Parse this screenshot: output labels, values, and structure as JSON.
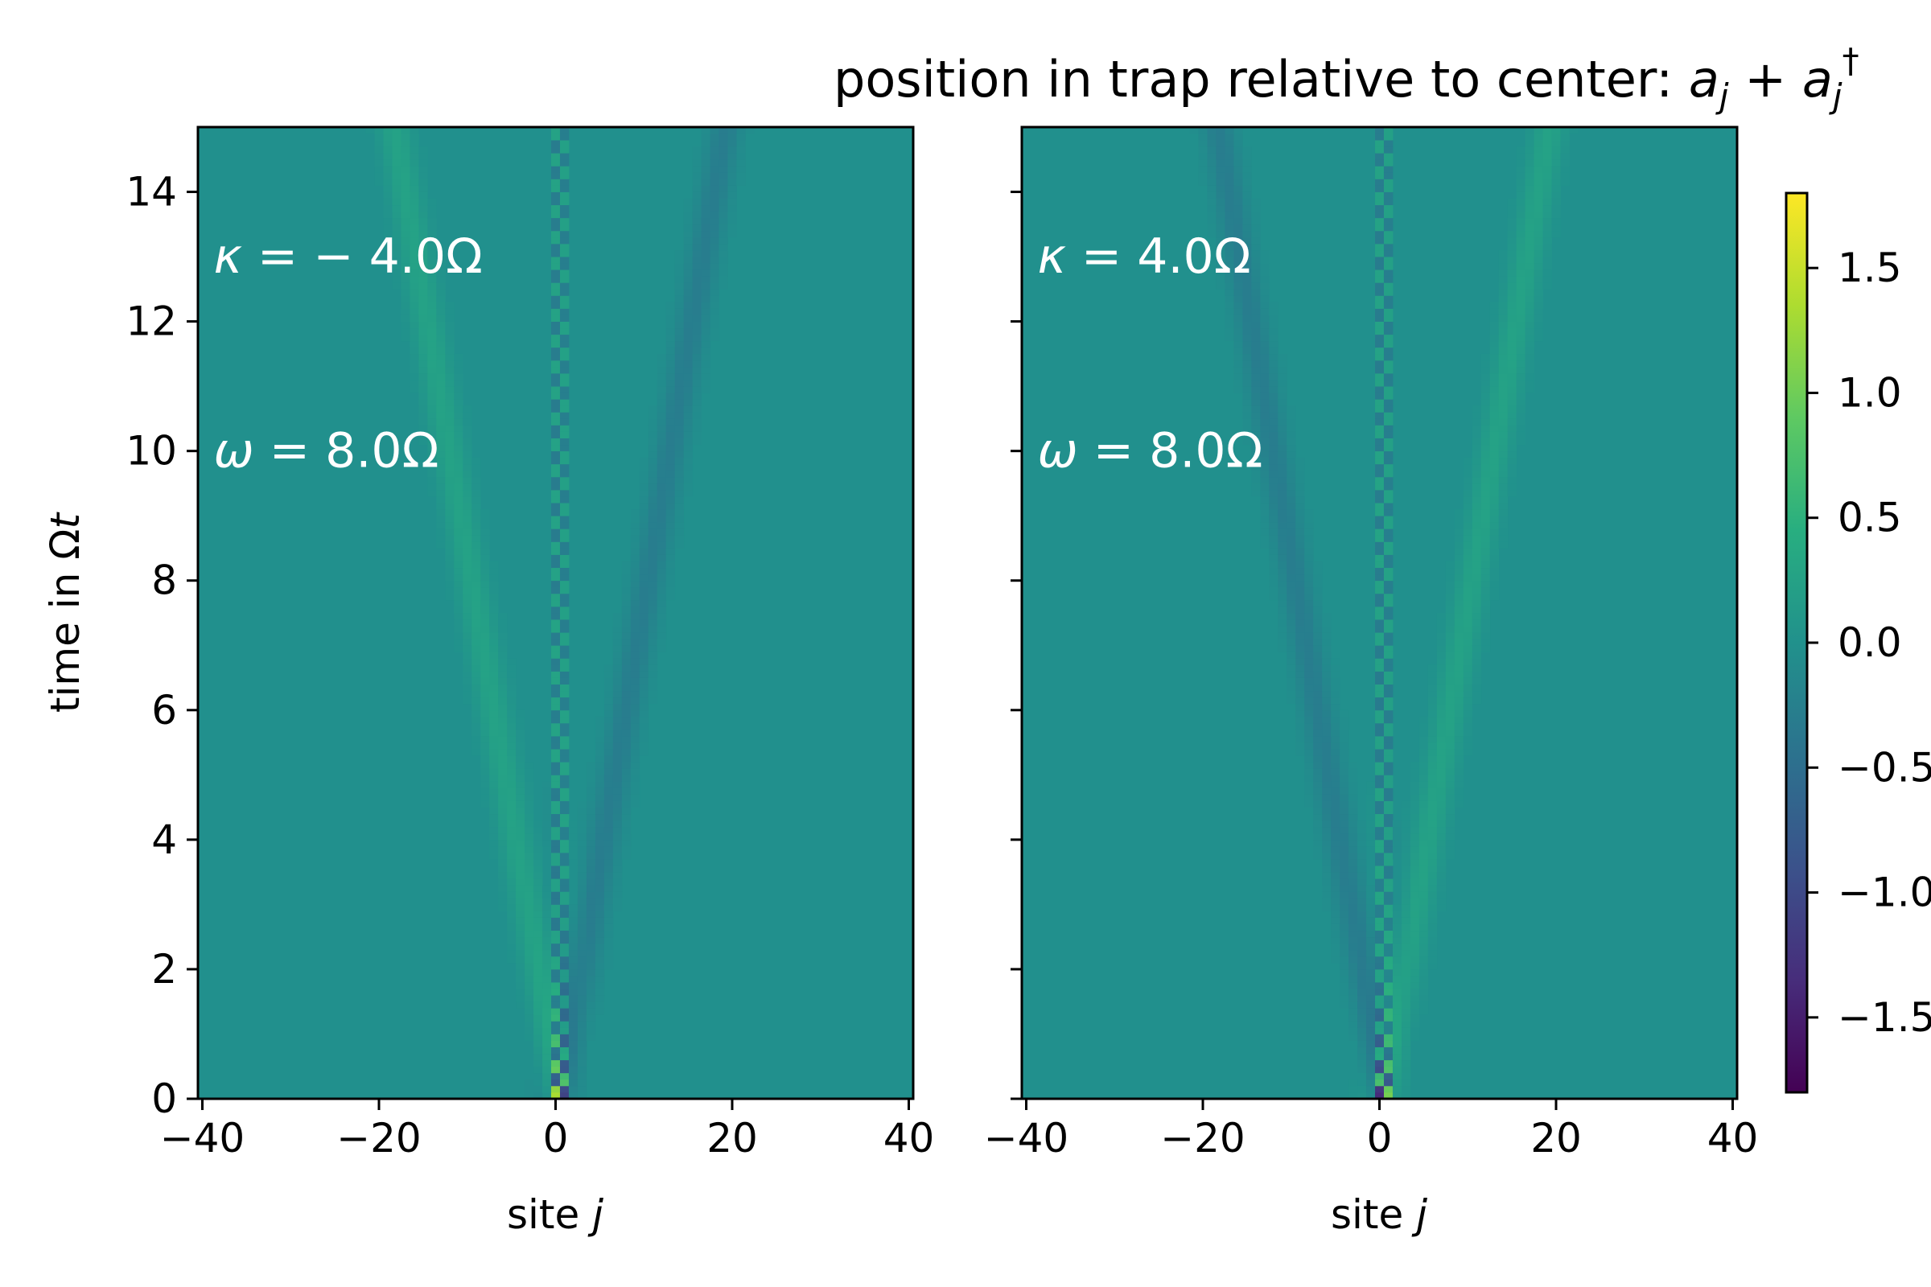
{
  "figure": {
    "title_prefix": "position in trap relative to center: ",
    "title_math": {
      "a": "a",
      "j": "j",
      "plus": " + ",
      "dagger": "†"
    }
  },
  "chart_data": [
    {
      "type": "heatmap",
      "panel": "left",
      "xlabel": "site ",
      "xlabel_var": "j",
      "ylabel": "time in Ω",
      "ylabel_var": "t",
      "xlim": [
        -40.5,
        40.5
      ],
      "ylim": [
        0,
        15
      ],
      "xticks": [
        -40,
        -20,
        0,
        20,
        40
      ],
      "xtick_labels": [
        "−40",
        "−20",
        "0",
        "20",
        "40"
      ],
      "yticks": [
        0,
        2,
        4,
        6,
        8,
        10,
        12,
        14
      ],
      "ytick_labels": [
        "0",
        "2",
        "4",
        "6",
        "8",
        "10",
        "12",
        "14"
      ],
      "annotations": [
        {
          "sym": "κ",
          "text": " = − 4.0Ω",
          "x": -40,
          "y": 13.0
        },
        {
          "sym": "ω",
          "text": " = 8.0Ω",
          "x": -40,
          "y": 10.0
        }
      ],
      "kappa": -4.0,
      "omega": 8.0,
      "colormap": "viridis",
      "vmin": -1.8,
      "vmax": 1.8
    },
    {
      "type": "heatmap",
      "panel": "right",
      "xlabel": "site ",
      "xlabel_var": "j",
      "xlim": [
        -40.5,
        40.5
      ],
      "ylim": [
        0,
        15
      ],
      "xticks": [
        -40,
        -20,
        0,
        20,
        40
      ],
      "xtick_labels": [
        "−40",
        "−20",
        "0",
        "20",
        "40"
      ],
      "yticks": [
        0,
        2,
        4,
        6,
        8,
        10,
        12,
        14
      ],
      "annotations": [
        {
          "sym": "κ",
          "text": " = 4.0Ω",
          "x": -40,
          "y": 13.0
        },
        {
          "sym": "ω",
          "text": " = 8.0Ω",
          "x": -40,
          "y": 10.0
        }
      ],
      "kappa": 4.0,
      "omega": 8.0,
      "colormap": "viridis",
      "vmin": -1.8,
      "vmax": 1.8
    }
  ],
  "colorbar": {
    "range": [
      -1.8,
      1.8
    ],
    "ticks": [
      1.5,
      1.0,
      0.5,
      0.0,
      -0.5,
      -1.0,
      -1.5
    ],
    "tick_labels": [
      "1.5",
      "1.0",
      "0.5",
      "0.0",
      "−0.5",
      "−1.0",
      "−1.5"
    ]
  }
}
